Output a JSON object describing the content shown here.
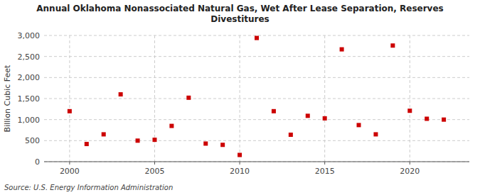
{
  "chart_data": {
    "type": "scatter",
    "title": "Annual Oklahoma Nonassociated Natural Gas, Wet After Lease Separation, Reserves\nDivestitures",
    "ylabel": "Billion Cubic Feet",
    "source": "Source: U.S. Energy Information Administration",
    "x": [
      2000,
      2001,
      2002,
      2003,
      2004,
      2005,
      2006,
      2007,
      2008,
      2009,
      2010,
      2011,
      2012,
      2013,
      2014,
      2015,
      2016,
      2017,
      2018,
      2019,
      2020,
      2021,
      2022
    ],
    "values": [
      1200,
      420,
      650,
      1600,
      500,
      520,
      850,
      1520,
      430,
      400,
      160,
      2940,
      1200,
      640,
      1090,
      1030,
      2670,
      870,
      650,
      2760,
      1210,
      1020,
      1000
    ],
    "color": "#cc0000",
    "marker": "square",
    "xlim": [
      1998.5,
      2023.5
    ],
    "xticks": [
      2000,
      2005,
      2010,
      2015,
      2020
    ],
    "ylim": [
      0,
      3000
    ],
    "yticks": [
      0,
      500,
      {
        "value": 1000,
        "label": "1,000"
      },
      {
        "value": 1500,
        "label": "1,500"
      },
      {
        "value": 2000,
        "label": "2,000"
      },
      {
        "value": 2500,
        "label": "2,500"
      },
      {
        "value": 3000,
        "label": "3,000"
      }
    ],
    "grid": true
  }
}
